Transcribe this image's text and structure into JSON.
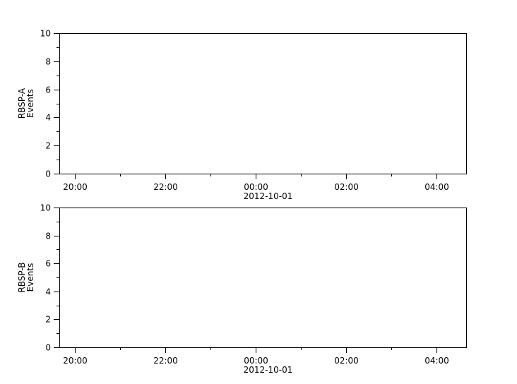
{
  "chart_data": [
    {
      "type": "line",
      "ylabel": [
        "RBSP-A",
        "Events"
      ],
      "ylim": [
        0,
        10
      ],
      "yticks": [
        0,
        2,
        4,
        6,
        8,
        10
      ],
      "yminor_ticks": [
        1,
        3,
        5,
        7,
        9
      ],
      "xlim": [
        "2012-09-30T19:39",
        "2012-10-01T04:39"
      ],
      "xticks": [
        {
          "time": "2012-09-30T20:00",
          "label": "20:00"
        },
        {
          "time": "2012-09-30T22:00",
          "label": "22:00"
        },
        {
          "time": "2012-10-01T00:00",
          "label": "00:00",
          "sublabel": "2012-10-01"
        },
        {
          "time": "2012-10-01T02:00",
          "label": "02:00"
        },
        {
          "time": "2012-10-01T04:00",
          "label": "04:00"
        }
      ],
      "xminor_ticks": [
        "2012-09-30T21:00",
        "2012-09-30T23:00",
        "2012-10-01T01:00",
        "2012-10-01T03:00"
      ],
      "series": [],
      "grid": false
    },
    {
      "type": "line",
      "ylabel": [
        "RBSP-B",
        "Events"
      ],
      "ylim": [
        0,
        10
      ],
      "yticks": [
        0,
        2,
        4,
        6,
        8,
        10
      ],
      "yminor_ticks": [
        1,
        3,
        5,
        7,
        9
      ],
      "xlim": [
        "2012-09-30T19:39",
        "2012-10-01T04:39"
      ],
      "xticks": [
        {
          "time": "2012-09-30T20:00",
          "label": "20:00"
        },
        {
          "time": "2012-09-30T22:00",
          "label": "22:00"
        },
        {
          "time": "2012-10-01T00:00",
          "label": "00:00",
          "sublabel": "2012-10-01"
        },
        {
          "time": "2012-10-01T02:00",
          "label": "02:00"
        },
        {
          "time": "2012-10-01T04:00",
          "label": "04:00"
        }
      ],
      "xminor_ticks": [
        "2012-09-30T21:00",
        "2012-09-30T23:00",
        "2012-10-01T01:00",
        "2012-10-01T03:00"
      ],
      "series": [],
      "grid": false
    }
  ]
}
